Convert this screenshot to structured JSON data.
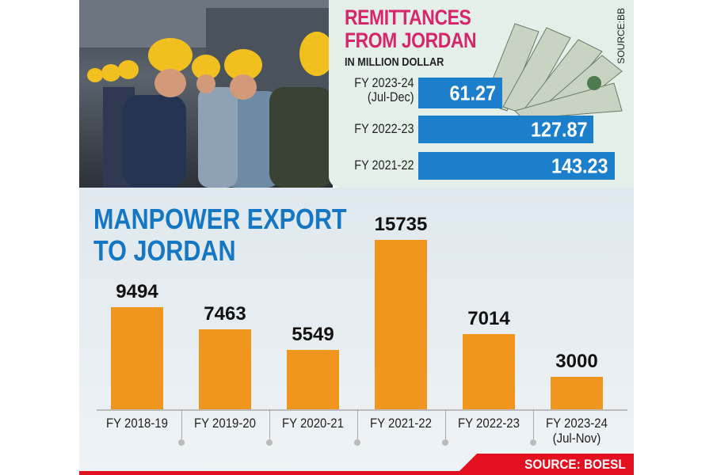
{
  "remittances": {
    "title_line1": "REMITTANCES",
    "title_line2": "FROM JORDAN",
    "subtitle": "IN MILLION DOLLAR",
    "source": "SOURCE:BB",
    "items": [
      {
        "label1": "FY 2023-24",
        "label2": "(Jul-Dec)",
        "value": 61.27,
        "display": "61.27"
      },
      {
        "label1": "FY 2022-23",
        "label2": "",
        "value": 127.87,
        "display": "127.87"
      },
      {
        "label1": "FY 2021-22",
        "label2": "",
        "value": 143.23,
        "display": "143.23"
      }
    ],
    "color": "#1b7fcc"
  },
  "chart_data": {
    "type": "bar",
    "title": "MANPOWER EXPORT TO JORDAN",
    "title_line1": "MANPOWER EXPORT",
    "title_line2": "TO JORDAN",
    "categories": [
      "FY 2018-19",
      "FY 2019-20",
      "FY 2020-21",
      "FY 2021-22",
      "FY 2022-23",
      "FY 2023-24"
    ],
    "category_notes": [
      "",
      "",
      "",
      "",
      "",
      "(Jul-Nov)"
    ],
    "values": [
      9494,
      7463,
      5549,
      15735,
      7014,
      3000
    ],
    "ylim": [
      0,
      15735
    ],
    "color": "#f0961f",
    "source": "SOURCE: BOESL"
  }
}
